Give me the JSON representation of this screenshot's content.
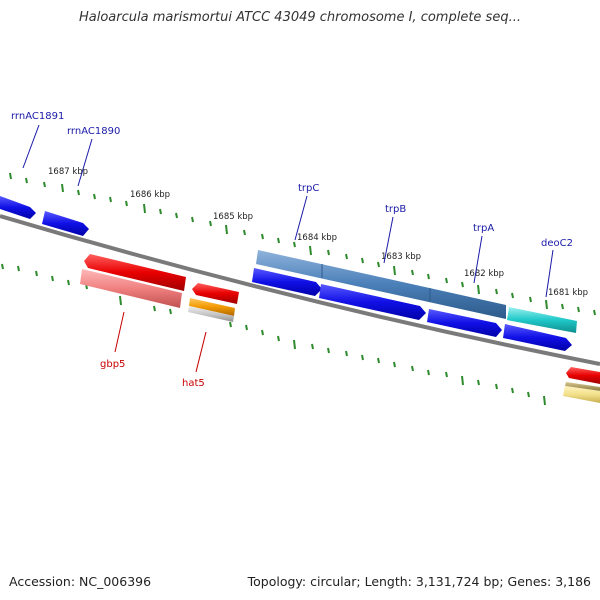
{
  "title": "Haloarcula marismortui ATCC 43049 chromosome I, complete seq...",
  "footer": {
    "accession": "Accession: NC_006396",
    "summary": "Topology: circular; Length: 3,131,724 bp; Genes: 3,186"
  },
  "ticks": [
    "1687 kbp",
    "1686 kbp",
    "1685 kbp",
    "1684 kbp",
    "1683 kbp",
    "1682 kbp",
    "1681 kbp"
  ],
  "genes": {
    "forward": [
      "rrnAC1891",
      "rrnAC1890",
      "trpC",
      "trpB",
      "trpA",
      "deoC2"
    ],
    "reverse": [
      "gbp5",
      "hat5"
    ]
  },
  "colors": {
    "track_line": "#7a7a7a",
    "tick_green": "#2e8b2e",
    "gene_blue": "#1010e6",
    "cds_steelblue": "#4a7fb8",
    "cds_cyan": "#20c8c8",
    "gene_red": "#e80000",
    "cds_pink": "#f08080",
    "cds_orange": "#f29a00",
    "cds_yellow": "#f2e08a",
    "label_blue": "#1a1aa8",
    "label_red": "#c80000"
  }
}
